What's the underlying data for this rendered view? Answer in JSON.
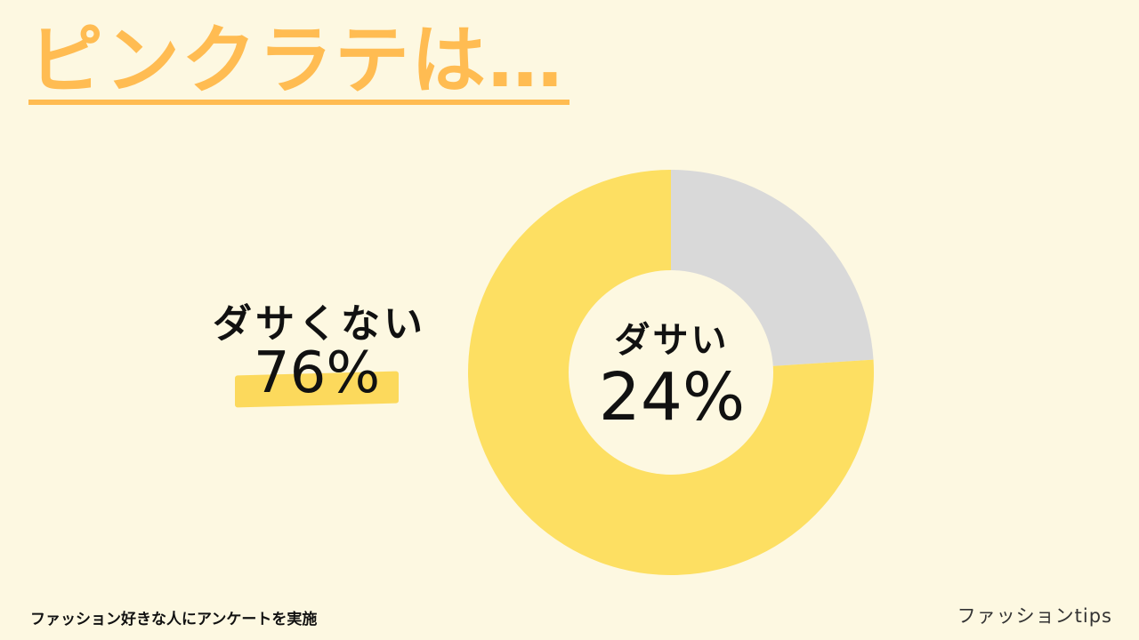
{
  "title": "ピンクラテは…",
  "footnote": "ファッション好きな人にアンケートを実施",
  "brand": "ファッションtips",
  "colors": {
    "background": "#fdf8e1",
    "title": "#ffbc52",
    "highlight": "#fcd95c"
  },
  "chart_data": {
    "type": "pie",
    "title": "",
    "donut": true,
    "categories": [
      "ダサい",
      "ダサくない"
    ],
    "values": [
      24,
      76
    ],
    "value_labels": [
      "24%",
      "76%"
    ],
    "colors": [
      "#d9d9d9",
      "#fddf62"
    ],
    "start_angle": "12 o'clock",
    "direction": "clockwise"
  }
}
